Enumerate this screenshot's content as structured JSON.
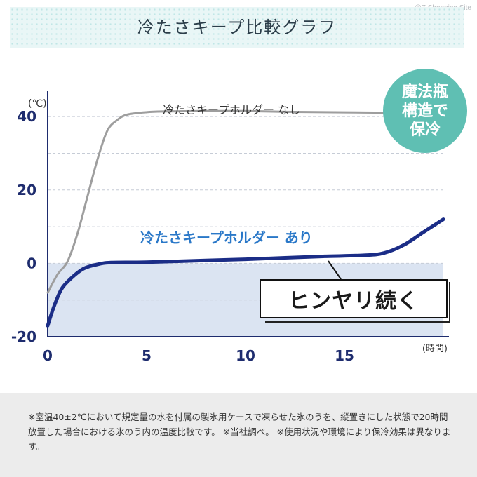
{
  "watermark": "@Z Shopping Site",
  "banner": {
    "title": "冷たさキープ比較グラフ"
  },
  "badge": {
    "text": "魔法瓶\n構造で\n保冷",
    "color": "#5fbfb3"
  },
  "callout": {
    "text": "ヒンヤリ続く"
  },
  "footnote": "※室温40±2℃において規定量の水を付属の製氷用ケースで凍らせた氷のうを、縦置きにした状態で20時間放置した場合における氷のう内の温度比較です。 ※当社調べ。 ※使用状況や環境により保冷効果は異なります。",
  "chart_data": {
    "type": "line",
    "title": "",
    "xlabel": "(時間)",
    "ylabel": "(℃)",
    "xlim": [
      0,
      20
    ],
    "ylim": [
      -20,
      45
    ],
    "xticks": [
      0,
      5,
      10,
      15
    ],
    "yticks": [
      40,
      20,
      0,
      -20
    ],
    "grid": true,
    "shaded_region_below": 0,
    "series": [
      {
        "name": "冷たさキープホルダー なし",
        "color": "#9e9e9e",
        "points": [
          [
            0,
            -8
          ],
          [
            0.5,
            -3
          ],
          [
            1,
            0.5
          ],
          [
            1.5,
            8
          ],
          [
            2,
            18
          ],
          [
            2.5,
            28
          ],
          [
            3,
            36
          ],
          [
            3.5,
            39
          ],
          [
            4,
            40.5
          ],
          [
            5,
            41.2
          ],
          [
            6,
            41.4
          ],
          [
            8,
            41.5
          ],
          [
            10,
            41.5
          ],
          [
            12,
            41.3
          ],
          [
            14,
            41.2
          ],
          [
            16,
            41.1
          ],
          [
            18,
            41
          ],
          [
            20,
            41
          ]
        ]
      },
      {
        "name": "冷たさキープホルダー あり",
        "color": "#1b2d87",
        "points": [
          [
            0,
            -17
          ],
          [
            0.3,
            -12
          ],
          [
            0.7,
            -7
          ],
          [
            1.2,
            -4
          ],
          [
            1.8,
            -1.5
          ],
          [
            2.5,
            -0.3
          ],
          [
            3.2,
            0.2
          ],
          [
            5,
            0.3
          ],
          [
            8,
            0.8
          ],
          [
            10,
            1.1
          ],
          [
            12,
            1.5
          ],
          [
            14,
            1.9
          ],
          [
            16,
            2.2
          ],
          [
            17,
            2.8
          ],
          [
            18,
            5
          ],
          [
            19,
            8.5
          ],
          [
            20,
            12
          ]
        ]
      }
    ]
  }
}
